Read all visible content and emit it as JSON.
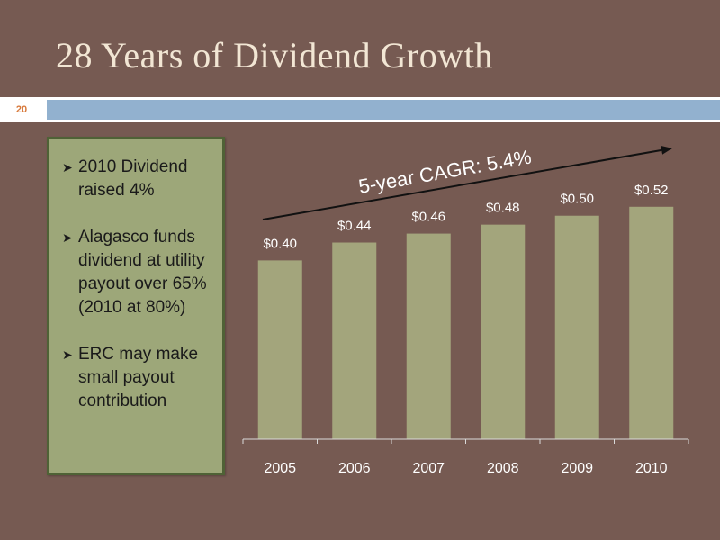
{
  "slide": {
    "title": "28 Years of Dividend Growth",
    "number": "20"
  },
  "bullets": [
    {
      "text": "2010 Dividend raised 4%"
    },
    {
      "text": "Alagasco funds dividend at utility payout over 65% (2010 at 80%)"
    },
    {
      "text": "ERC may make small payout contribution"
    }
  ],
  "colors": {
    "background": "#765A52",
    "bar": "#A3A57C",
    "box": "#9DA779",
    "title": "#F2E6D4",
    "accent_blue": "#92B1CF"
  },
  "chart_data": {
    "type": "bar",
    "categories": [
      "2005",
      "2006",
      "2007",
      "2008",
      "2009",
      "2010"
    ],
    "values": [
      0.4,
      0.44,
      0.46,
      0.48,
      0.5,
      0.52
    ],
    "value_labels": [
      "$0.40",
      "$0.44",
      "$0.46",
      "$0.48",
      "$0.50",
      "$0.52"
    ],
    "ylim": [
      0,
      0.58
    ],
    "grid": false,
    "annotation": "5-year CAGR: 5.4%"
  }
}
